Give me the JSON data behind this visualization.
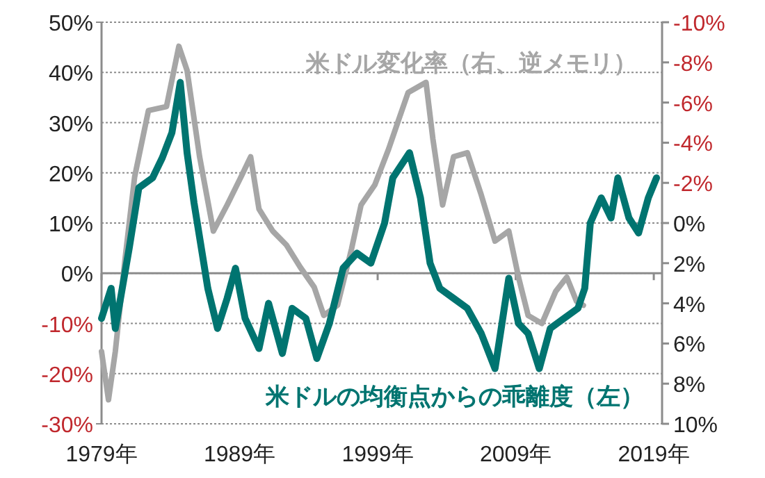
{
  "chart_data": {
    "type": "line",
    "xlim": [
      1979,
      2019.6
    ],
    "xticks": [
      {
        "value": 1979,
        "label": "1979年"
      },
      {
        "value": 1989,
        "label": "1989年"
      },
      {
        "value": 1999,
        "label": "1999年"
      },
      {
        "value": 2009,
        "label": "2009年"
      },
      {
        "value": 2019,
        "label": "2019年"
      }
    ],
    "ylim": [
      -30,
      50
    ],
    "yticks": [
      {
        "value": 50,
        "label": "50%"
      },
      {
        "value": 40,
        "label": "40%"
      },
      {
        "value": 30,
        "label": "30%"
      },
      {
        "value": 20,
        "label": "20%"
      },
      {
        "value": 10,
        "label": "10%"
      },
      {
        "value": 0,
        "label": "0%"
      },
      {
        "value": -10,
        "label": "-10%"
      },
      {
        "value": -20,
        "label": "-20%"
      },
      {
        "value": -30,
        "label": "-30%"
      }
    ],
    "y2lim": [
      10,
      -10
    ],
    "y2ticks": [
      {
        "value": -10,
        "label": "-10%"
      },
      {
        "value": -8,
        "label": "-8%"
      },
      {
        "value": -6,
        "label": "-6%"
      },
      {
        "value": -4,
        "label": "-4%"
      },
      {
        "value": -2,
        "label": "-2%"
      },
      {
        "value": 0,
        "label": "0%"
      },
      {
        "value": 2,
        "label": "2%"
      },
      {
        "value": 4,
        "label": "4%"
      },
      {
        "value": 6,
        "label": "6%"
      },
      {
        "value": 8,
        "label": "8%"
      },
      {
        "value": 10,
        "label": "10%"
      }
    ],
    "grid": "y",
    "series": [
      {
        "name": "米ドル変化率（右、逆メモリ）",
        "color": "#a6a6a6",
        "axis": "y2",
        "x": [
          1979.0,
          1979.5,
          1980.0,
          1980.7,
          1981.4,
          1982.4,
          1983.7,
          1984.6,
          1985.2,
          1986.1,
          1987.1,
          1988.1,
          1989.1,
          1989.8,
          1990.4,
          1991.4,
          1992.4,
          1993.4,
          1994.4,
          1995.1,
          1996.1,
          1997.1,
          1997.8,
          1998.8,
          1999.8,
          2000.5,
          2001.2,
          2002.5,
          2003.0,
          2003.7,
          2004.5,
          2005.5,
          2006.5,
          2007.5,
          2008.5,
          2009.2,
          2009.9,
          2010.9,
          2011.9,
          2012.7,
          2013.4,
          2013.9
        ],
        "values": [
          6.4,
          8.8,
          6.4,
          1.8,
          -2.3,
          -5.6,
          -5.8,
          -8.8,
          -7.6,
          -3.3,
          0.4,
          -0.9,
          -2.3,
          -3.3,
          -0.7,
          0.4,
          1.1,
          2.2,
          3.2,
          4.6,
          4.1,
          1.3,
          -0.9,
          -1.9,
          -3.7,
          -5.1,
          -6.5,
          -7.0,
          -4.2,
          -0.9,
          -3.3,
          -3.5,
          -1.4,
          0.9,
          0.4,
          2.7,
          4.6,
          5.0,
          3.4,
          2.7,
          3.9,
          4.1
        ]
      },
      {
        "name": "米ドルの均衡点からの乖離度（左）",
        "color": "#007470",
        "x": [
          1979.0,
          1979.7,
          1980.0,
          1980.5,
          1981.0,
          1981.7,
          1982.7,
          1983.4,
          1984.1,
          1984.7,
          1985.2,
          1985.7,
          1986.4,
          1986.7,
          1987.4,
          1988.1,
          1988.7,
          1989.4,
          1990.4,
          1991.1,
          1992.1,
          1992.8,
          1993.8,
          1994.6,
          1995.5,
          1996.5,
          1997.5,
          1998.5,
          1999.5,
          2000.1,
          2001.3,
          2002.1,
          2002.8,
          2003.5,
          2004.5,
          2005.5,
          2006.5,
          2007.5,
          2008.0,
          2008.5,
          2009.2,
          2009.9,
          2010.7,
          2011.5,
          2012.5,
          2013.5,
          2014.0,
          2014.4,
          2015.2,
          2015.9,
          2016.4,
          2017.2,
          2017.9,
          2018.6,
          2019.2
        ],
        "values": [
          -9,
          -3,
          -11,
          -3,
          5,
          17,
          19,
          23,
          28,
          38,
          24,
          14,
          2,
          -3,
          -11,
          -5,
          1,
          -9,
          -15,
          -6,
          -16,
          -7,
          -9,
          -17,
          -10,
          1,
          4,
          2,
          10,
          19,
          24,
          15,
          2,
          -3,
          -5,
          -7,
          -12,
          -19,
          -10,
          -1,
          -10,
          -12,
          -19,
          -11,
          -9,
          -7,
          -3,
          10,
          15,
          11,
          19,
          11,
          8,
          15,
          19
        ]
      }
    ]
  }
}
